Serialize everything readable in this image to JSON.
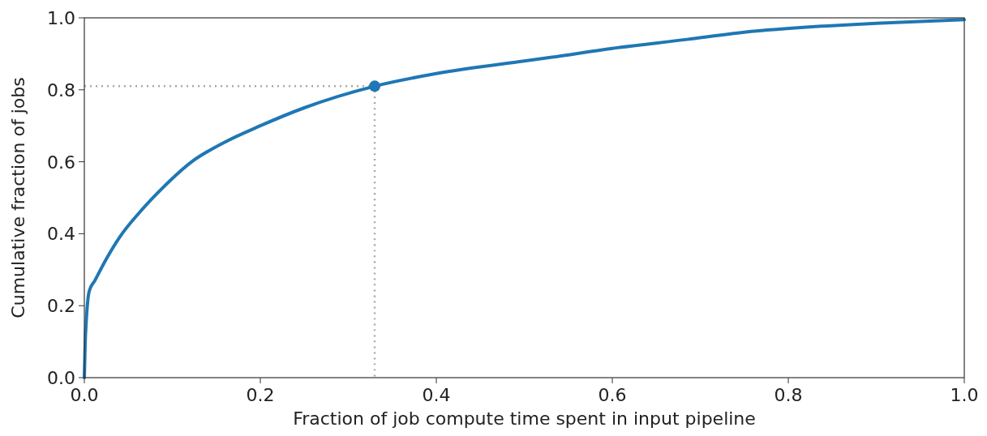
{
  "chart_data": {
    "type": "line",
    "xlabel": "Fraction of job compute time spent in input pipeline",
    "ylabel": "Cumulative fraction of jobs",
    "xlim": [
      0,
      1
    ],
    "ylim": [
      0,
      1
    ],
    "xticks": [
      {
        "value": 0,
        "label": "0.0"
      },
      {
        "value": 0.2,
        "label": "0.2"
      },
      {
        "value": 0.4,
        "label": "0.4"
      },
      {
        "value": 0.6,
        "label": "0.6"
      },
      {
        "value": 0.8,
        "label": "0.8"
      },
      {
        "value": 1,
        "label": "1.0"
      }
    ],
    "yticks": [
      {
        "value": 0,
        "label": "0.0"
      },
      {
        "value": 0.2,
        "label": "0.2"
      },
      {
        "value": 0.4,
        "label": "0.4"
      },
      {
        "value": 0.6,
        "label": "0.6"
      },
      {
        "value": 0.8,
        "label": "0.8"
      },
      {
        "value": 1,
        "label": "1.0"
      }
    ],
    "grid": false,
    "series": [
      {
        "type": "line",
        "color": "#aaaaaa",
        "line_style": "dotted",
        "marker": "none",
        "x": [
          0,
          0.33,
          0.33
        ],
        "values": [
          0.81,
          0.81,
          0
        ]
      },
      {
        "color": "#1f77b4",
        "line_style": "solid",
        "marker": "none",
        "x": [
          0,
          0.001,
          0.002,
          0.0055,
          0.012,
          0.025,
          0.04,
          0.063,
          0.088,
          0.122,
          0.16,
          0.2,
          0.25,
          0.33,
          0.4,
          0.5,
          0.53,
          0.6,
          0.685,
          0.75,
          0.84,
          0.9,
          1.0
        ],
        "values": [
          0,
          0.1,
          0.15,
          0.24,
          0.27,
          0.33,
          0.39,
          0.46,
          0.525,
          0.6,
          0.655,
          0.7,
          0.75,
          0.81,
          0.845,
          0.88,
          0.89,
          0.915,
          0.94,
          0.96,
          0.977,
          0.985,
          0.995
        ]
      },
      {
        "type": "scatter",
        "color": "#1f77b4",
        "marker": "circle",
        "x": [
          0.33
        ],
        "values": [
          0.81
        ]
      }
    ]
  }
}
